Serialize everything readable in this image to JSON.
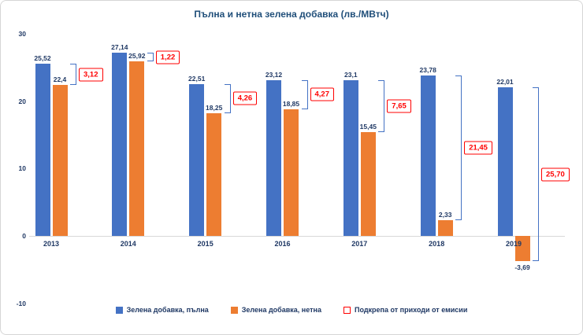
{
  "chart_data": {
    "type": "bar",
    "title": "Пълна и нетна зелена добавка (лв./МВтч)",
    "categories": [
      "2013",
      "2014",
      "2015",
      "2016",
      "2017",
      "2018",
      "2019"
    ],
    "series": [
      {
        "name": "Зелена добавка, пълна",
        "color": "#4472C4",
        "values": [
          25.52,
          27.14,
          22.51,
          23.12,
          23.1,
          23.78,
          22.01
        ],
        "labels": [
          "25,52",
          "27,14",
          "22,51",
          "23,12",
          "23,1",
          "23,78",
          "22,01"
        ]
      },
      {
        "name": "Зелена добавка, нетна",
        "color": "#ED7D31",
        "values": [
          22.4,
          25.92,
          18.25,
          18.85,
          15.45,
          2.33,
          -3.69
        ],
        "labels": [
          "22,4",
          "25,92",
          "18,25",
          "18,85",
          "15,45",
          "2,33",
          "-3,69"
        ]
      }
    ],
    "difference_series": {
      "name": "Подкрепа от приходи от емисии",
      "color": "#FF0000",
      "values": [
        3.12,
        1.22,
        4.26,
        4.27,
        7.65,
        21.45,
        25.7
      ],
      "labels": [
        "3,12",
        "1,22",
        "4,26",
        "4,27",
        "7,65",
        "21,45",
        "25,70"
      ]
    },
    "y_axis": {
      "min": -10,
      "max": 30,
      "ticks": [
        30,
        20,
        10,
        0,
        -10
      ],
      "tick_labels": [
        "30",
        "20",
        "10",
        "0",
        "-10"
      ]
    },
    "grid": false,
    "legend_position": "bottom"
  }
}
